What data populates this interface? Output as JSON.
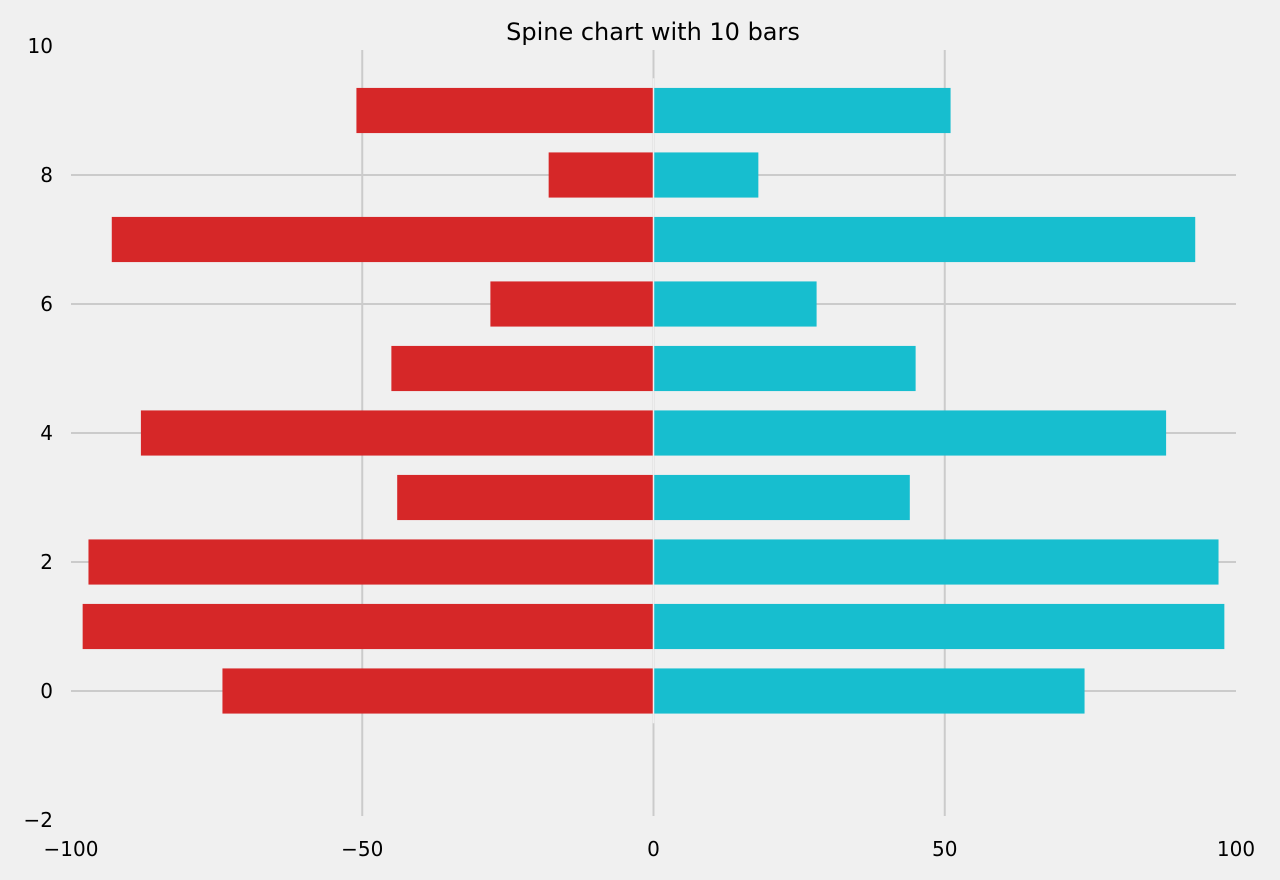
{
  "chart_data": {
    "type": "bar",
    "orientation": "horizontal-diverging",
    "title": "Spine chart with 10 bars",
    "xlabel": "",
    "ylabel": "",
    "xlim": [
      -100,
      100
    ],
    "ylim": [
      -2,
      10
    ],
    "x_ticks": [
      -100,
      -50,
      0,
      50,
      100
    ],
    "x_tick_labels": [
      "−100",
      "−50",
      "0",
      "50",
      "100"
    ],
    "y_ticks": [
      -2,
      0,
      2,
      4,
      6,
      8,
      10
    ],
    "y_tick_labels": [
      "−2",
      "0",
      "2",
      "4",
      "6",
      "8",
      "10"
    ],
    "grid": true,
    "bar_height": 0.7,
    "categories": [
      0,
      1,
      2,
      3,
      4,
      5,
      6,
      7,
      8,
      9
    ],
    "series": [
      {
        "color": "#d62728",
        "values": [
          -74,
          -98,
          -97,
          -44,
          -88,
          -45,
          -28,
          -93,
          -18,
          -51
        ]
      },
      {
        "color": "#17becf",
        "values": [
          74,
          98,
          97,
          44,
          88,
          45,
          28,
          93,
          18,
          51
        ]
      }
    ],
    "colors": {
      "background": "#f0f0f0",
      "grid": "#cbcbcb"
    }
  }
}
